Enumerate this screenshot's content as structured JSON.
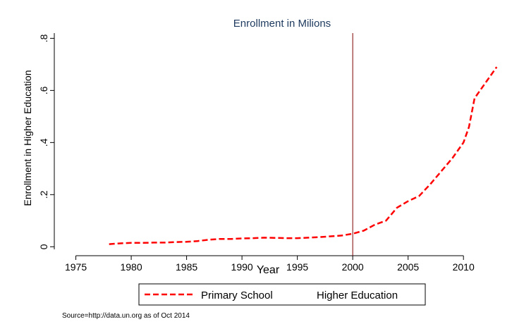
{
  "chart_data": {
    "type": "line",
    "title": "Enrollment in Milions",
    "xlabel": "Year",
    "ylabel": "Enrollment in Higher Education",
    "xlim": [
      1973.5,
      2014
    ],
    "ylim": [
      -0.01,
      0.82
    ],
    "x_ticks": [
      1975,
      1980,
      1985,
      1990,
      1995,
      2000,
      2005,
      2010
    ],
    "y_ticks": [
      0,
      0.2,
      0.4,
      0.6,
      0.8
    ],
    "y_tick_labels": [
      "0",
      ".2",
      ".4",
      ".6",
      ".8"
    ],
    "grid": false,
    "vertical_reference_line": 2000,
    "legend_position": "bottom",
    "note": "Source=http://data.un.org as of Oct 2014",
    "series": [
      {
        "name": "Primary School",
        "style": "dashed",
        "color": "#ff0000",
        "x": [],
        "y": []
      },
      {
        "name": "Higher Education",
        "style": "dashed",
        "color": "#ff0000",
        "x": [
          1978,
          1979,
          1980,
          1981,
          1982,
          1983,
          1984,
          1985,
          1986,
          1987,
          1988,
          1989,
          1990,
          1991,
          1992,
          1993,
          1994,
          1995,
          1996,
          1997,
          1998,
          1999,
          2000,
          2001,
          2002,
          2003,
          2004,
          2005,
          2006,
          2007,
          2008,
          2009,
          2010,
          2010.5,
          2011,
          2012,
          2013
        ],
        "y": [
          0.01,
          0.013,
          0.015,
          0.015,
          0.016,
          0.016,
          0.018,
          0.019,
          0.022,
          0.027,
          0.03,
          0.03,
          0.032,
          0.033,
          0.035,
          0.034,
          0.033,
          0.033,
          0.035,
          0.037,
          0.04,
          0.043,
          0.05,
          0.062,
          0.085,
          0.1,
          0.15,
          0.175,
          0.195,
          0.24,
          0.29,
          0.34,
          0.4,
          0.46,
          0.57,
          0.63,
          0.69
        ]
      }
    ]
  },
  "colors": {
    "series": "#ff0000",
    "reference_line": "#800000",
    "title": "#1e3a5f",
    "axis": "#000000"
  }
}
